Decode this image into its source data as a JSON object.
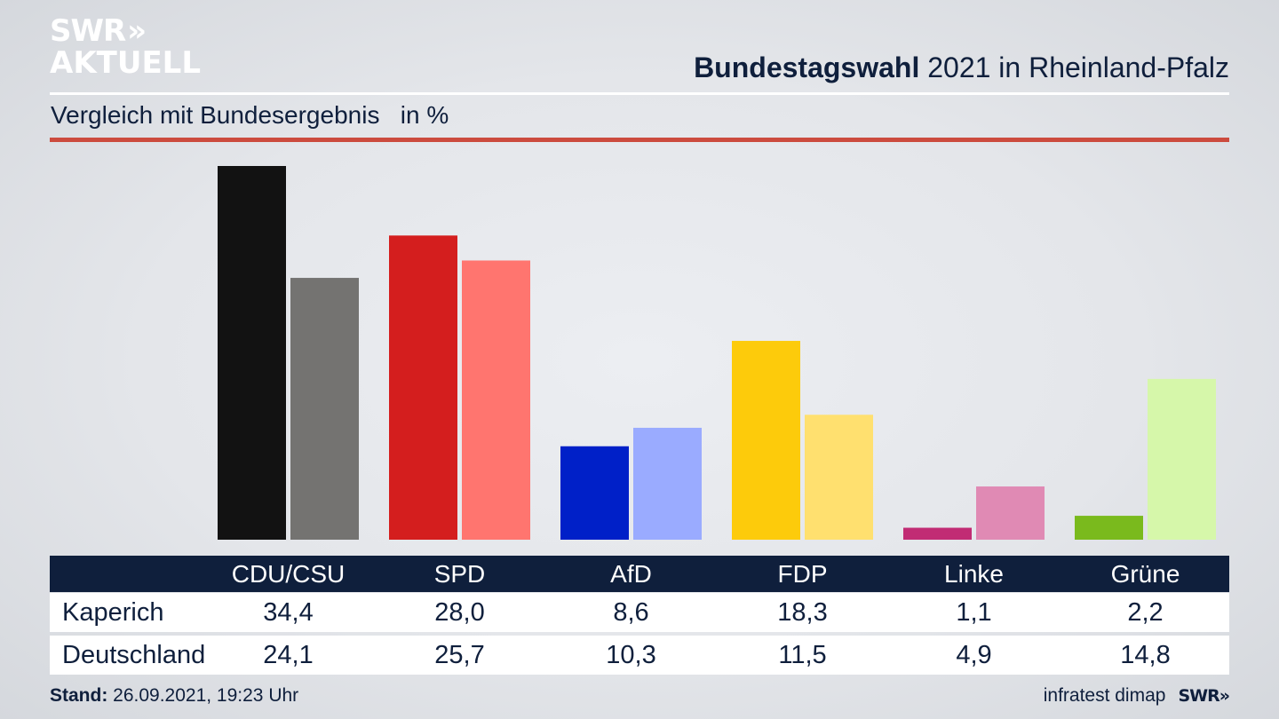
{
  "logo": {
    "line1": "SWR",
    "chevron": "»",
    "line2": "AKTUELL"
  },
  "header": {
    "title_bold": "Bundestagswahl",
    "title_rest": " 2021 in Rheinland-Pfalz",
    "subtitle": "Vergleich mit Bundesergebnis   in %"
  },
  "colors": {
    "navy": "#0f1f3c",
    "accent_red_rule": "#cc4b3e"
  },
  "chart_data": {
    "type": "bar",
    "title": "Bundestagswahl 2021 in Rheinland-Pfalz",
    "subtitle": "Vergleich mit Bundesergebnis in %",
    "xlabel": "",
    "ylabel": "in %",
    "ylim": [
      0,
      34.4
    ],
    "grid": false,
    "categories": [
      "CDU/CSU",
      "SPD",
      "AfD",
      "FDP",
      "Linke",
      "Grüne"
    ],
    "series": [
      {
        "name": "Kaperich",
        "values": [
          34.4,
          28.0,
          8.6,
          18.3,
          1.1,
          2.2
        ],
        "labels": [
          "34,4",
          "28,0",
          "8,6",
          "18,3",
          "1,1",
          "2,2"
        ],
        "colors": [
          "#121212",
          "#d41e1e",
          "#0020c8",
          "#fdcb0b",
          "#c12c74",
          "#7aba1d"
        ]
      },
      {
        "name": "Deutschland",
        "values": [
          24.1,
          25.7,
          10.3,
          11.5,
          4.9,
          14.8
        ],
        "labels": [
          "24,1",
          "25,7",
          "10,3",
          "11,5",
          "4,9",
          "14,8"
        ],
        "colors": [
          "#747371",
          "#ff756f",
          "#9aabff",
          "#ffe06f",
          "#e08ab4",
          "#d6f7aa"
        ]
      }
    ]
  },
  "footer": {
    "stand_label": "Stand:",
    "stand_value": " 26.09.2021, 19:23 Uhr",
    "source": "infratest dimap",
    "brand": "SWR»"
  }
}
